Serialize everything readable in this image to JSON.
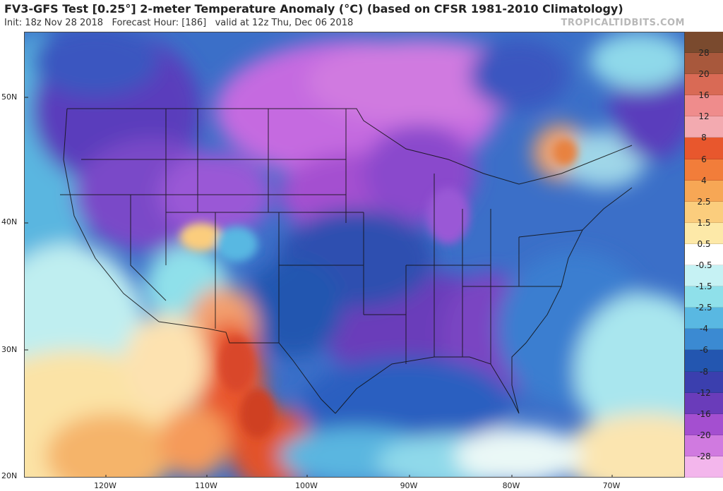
{
  "header": {
    "title": "FV3-GFS Test [0.25°] 2-meter Temperature Anomaly (°C) (based on CFSR 1981-2010 Climatology)",
    "init": "Init: 18z Nov 28 2018",
    "forecast_hour": "Forecast Hour: [186]",
    "valid": "valid at 12z Thu, Dec 06 2018",
    "brand": "TROPICALTIDBITS.COM"
  },
  "axes": {
    "lat_labels": [
      "50N",
      "40N",
      "30N",
      "20N"
    ],
    "lon_labels": [
      "120W",
      "110W",
      "100W",
      "90W",
      "80W",
      "70W"
    ]
  },
  "colorbar": {
    "labels": [
      "28",
      "20",
      "16",
      "12",
      "8",
      "6",
      "4",
      "2.5",
      "1.5",
      "0.5",
      "-0.5",
      "-1.5",
      "-2.5",
      "-4",
      "-6",
      "-8",
      "-12",
      "-16",
      "-20",
      "-28"
    ],
    "colors": [
      "#7a4a2e",
      "#a8583c",
      "#d96a55",
      "#ef8c8c",
      "#f3aab0",
      "#e8572d",
      "#f27d3a",
      "#f7a755",
      "#fbcd7d",
      "#fde9a8",
      "#ffffff",
      "#c6f2f4",
      "#8fe0ea",
      "#59b8e2",
      "#3b8ad2",
      "#2356b0",
      "#3b3fae",
      "#6a3cba",
      "#a44fd0",
      "#d07ae0",
      "#f3b6ec"
    ]
  },
  "map": {
    "field": "2-meter Temperature Anomaly",
    "region": "Continental United States, southern Canada, Mexico, Gulf of Mexico"
  }
}
